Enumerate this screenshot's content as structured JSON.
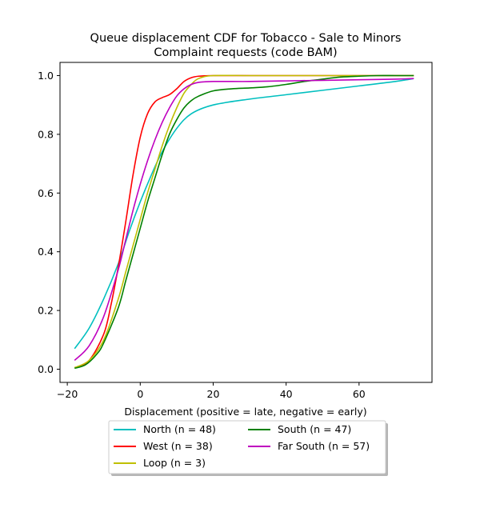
{
  "chart_data": {
    "type": "line",
    "title_lines": [
      "Queue displacement CDF for Tobacco - Sale to Minors",
      "Complaint  requests (code BAM)"
    ],
    "xlabel": "Displacement (positive = late, negative = early)",
    "ylabel": "",
    "xlim": [
      -22,
      80
    ],
    "ylim": [
      -0.045,
      1.045
    ],
    "x_ticks": [
      -20,
      0,
      20,
      40,
      60
    ],
    "y_ticks": [
      0.0,
      0.2,
      0.4,
      0.6,
      0.8,
      1.0
    ],
    "x_tick_labels": [
      "−20",
      "0",
      "20",
      "40",
      "60"
    ],
    "y_tick_labels": [
      "0.0",
      "0.2",
      "0.4",
      "0.6",
      "0.8",
      "1.0"
    ],
    "grid": false,
    "legend": {
      "placement": "below",
      "columns": 2,
      "entries_order": [
        "North (n = 48)",
        "West (n = 38)",
        "Loop (n = 3)",
        "South (n = 47)",
        "Far South (n = 57)"
      ]
    },
    "series": [
      {
        "name": "North (n = 48)",
        "color": "#00bfbf",
        "x": [
          -18,
          -14,
          -10,
          -6,
          -3,
          0,
          3,
          6,
          10,
          14,
          20,
          30,
          40,
          50,
          60,
          70,
          75
        ],
        "y": [
          0.07,
          0.14,
          0.24,
          0.36,
          0.47,
          0.57,
          0.66,
          0.74,
          0.82,
          0.87,
          0.9,
          0.92,
          0.935,
          0.95,
          0.965,
          0.98,
          0.99
        ]
      },
      {
        "name": "West (n = 38)",
        "color": "#ff0000",
        "x": [
          -18,
          -14,
          -10,
          -8,
          -6,
          -4,
          -2,
          0,
          2,
          4,
          6,
          8,
          10,
          12,
          14,
          16,
          20,
          30,
          40,
          50,
          60,
          70,
          75
        ],
        "y": [
          0.005,
          0.03,
          0.12,
          0.22,
          0.35,
          0.5,
          0.66,
          0.79,
          0.87,
          0.91,
          0.925,
          0.935,
          0.955,
          0.98,
          0.993,
          0.998,
          1.0,
          1.0,
          1.0,
          1.0,
          1.0,
          1.0,
          1.0
        ]
      },
      {
        "name": "Loop (n = 3)",
        "color": "#bfbf00",
        "x": [
          -18,
          -14,
          -10,
          -6,
          -4,
          -2,
          0,
          2,
          4,
          6,
          8,
          10,
          12,
          14,
          16,
          20,
          30,
          40,
          50,
          60,
          70,
          75
        ],
        "y": [
          0.005,
          0.03,
          0.1,
          0.24,
          0.33,
          0.42,
          0.51,
          0.6,
          0.68,
          0.76,
          0.83,
          0.89,
          0.94,
          0.97,
          0.99,
          1.0,
          1.0,
          1.0,
          1.0,
          1.0,
          1.0,
          1.0
        ]
      },
      {
        "name": "South (n = 47)",
        "color": "#008000",
        "x": [
          -18,
          -15,
          -12,
          -10,
          -6,
          -4,
          -2,
          0,
          2,
          4,
          6,
          8,
          10,
          12,
          14,
          16,
          20,
          25,
          30,
          35,
          40,
          45,
          50,
          55,
          60,
          65,
          70,
          75
        ],
        "y": [
          0.003,
          0.015,
          0.05,
          0.09,
          0.21,
          0.3,
          0.39,
          0.48,
          0.57,
          0.65,
          0.73,
          0.8,
          0.85,
          0.89,
          0.915,
          0.93,
          0.948,
          0.955,
          0.958,
          0.962,
          0.97,
          0.98,
          0.988,
          0.995,
          0.998,
          1.0,
          1.0,
          1.0
        ]
      },
      {
        "name": "Far South (n = 57)",
        "color": "#bf00bf",
        "x": [
          -18,
          -14,
          -10,
          -6,
          -4,
          -2,
          0,
          2,
          4,
          6,
          8,
          10,
          12,
          14,
          16,
          20,
          30,
          40,
          50,
          60,
          70,
          75
        ],
        "y": [
          0.03,
          0.08,
          0.18,
          0.34,
          0.44,
          0.54,
          0.63,
          0.71,
          0.78,
          0.84,
          0.89,
          0.93,
          0.955,
          0.97,
          0.977,
          0.98,
          0.98,
          0.982,
          0.984,
          0.986,
          0.988,
          0.99
        ]
      }
    ]
  }
}
